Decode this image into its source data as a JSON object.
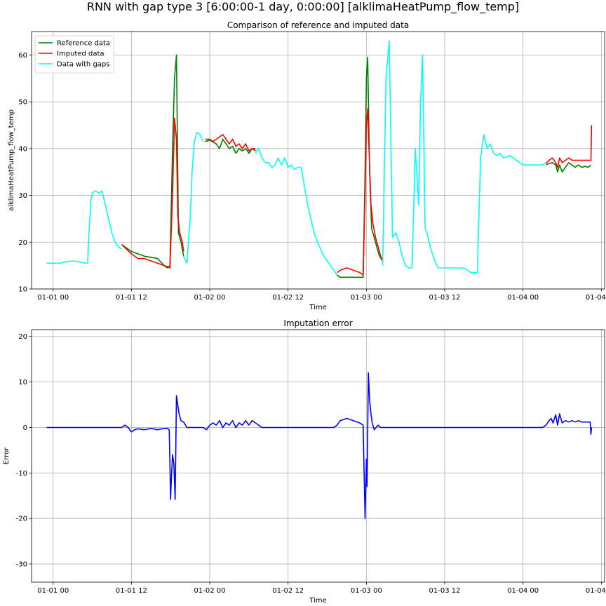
{
  "suptitle": "RNN with gap type 3 [6:00:00-1 day, 0:00:00] [alklimaHeatPump_flow_temp]",
  "chart_data": [
    {
      "type": "line",
      "title": "Comparison of reference and imputed data",
      "xlabel": "Time",
      "ylabel": "alklimaHeatPump_flow_temp",
      "x_unit": "hours since 01-01 00",
      "xlim": [
        -3.3,
        84.5
      ],
      "ylim": [
        10,
        65
      ],
      "xticks": [
        0,
        12,
        24,
        36,
        48,
        60,
        72,
        84
      ],
      "xtick_labels": [
        "01-01 00",
        "01-01 12",
        "01-02 00",
        "01-02 12",
        "01-03 00",
        "01-03 12",
        "01-04 00",
        "01-04 12"
      ],
      "yticks": [
        10,
        20,
        30,
        40,
        50,
        60
      ],
      "grid": true,
      "legend": "top-left",
      "series": [
        {
          "name": "Reference data",
          "color": "#008000",
          "x": [
            10.5,
            11,
            12,
            13,
            14,
            15,
            16,
            17,
            17.5,
            18,
            18.3,
            18.5,
            18.8,
            19.1,
            19.4,
            19.7,
            20,
            20.5,
            21,
            21.5,
            22,
            23,
            23.3,
            24,
            25,
            25.5,
            26,
            26.5,
            27,
            27.5,
            28,
            28.5,
            29,
            29.5,
            30,
            30.5,
            31,
            31.5
          ],
          "y": [
            20,
            19,
            18,
            18,
            17,
            16.5,
            16.5,
            15,
            14.5,
            25,
            45,
            54,
            60,
            22,
            21,
            18,
            16,
            15.5,
            30,
            40,
            43,
            42,
            41.5,
            42,
            41,
            40,
            41,
            40,
            42,
            40,
            39.5,
            40,
            39,
            40,
            39.5,
            40,
            39,
            40
          ],
          "segments": [
            {
              "x": [
                10.5,
                12,
                14,
                16,
                17,
                17.5,
                17.9,
                18.3,
                18.6,
                18.9,
                19.2,
                19.6,
                20
              ],
              "y": [
                19.5,
                18,
                17,
                16.5,
                15,
                14.5,
                15,
                40,
                55,
                60,
                22,
                20,
                17
              ]
            },
            {
              "x": [
                23.3,
                24,
                25,
                25.5,
                26,
                26.5,
                27,
                27.5,
                28,
                28.5,
                29,
                29.5,
                30,
                30.5,
                31
              ],
              "y": [
                41.5,
                41.8,
                41,
                40,
                42,
                41,
                40,
                40.5,
                39,
                40,
                39.5,
                40,
                39,
                40,
                39.5
              ]
            },
            {
              "x": [
                43.5,
                44,
                45,
                46,
                47,
                47.5,
                47.8,
                48,
                48.2,
                48.5,
                48.8,
                49.2,
                49.6,
                50,
                50.5
              ],
              "y": [
                13,
                12.5,
                12.5,
                12.5,
                12.5,
                12.5,
                35,
                55,
                59.5,
                35,
                23,
                21,
                19,
                17,
                16
              ]
            },
            {
              "x": [
                75.5,
                76,
                76.5,
                77,
                77.3,
                77.6,
                78,
                78.5,
                79,
                79.5,
                80,
                80.5,
                81,
                81.5,
                82,
                82.4
              ],
              "y": [
                36.5,
                36.8,
                37,
                36.5,
                35,
                36.5,
                35,
                36,
                37,
                36.5,
                36,
                36.5,
                36,
                36.2,
                36,
                36.5
              ]
            }
          ]
        },
        {
          "name": "Imputed data",
          "color": "#ff0000",
          "segments": [
            {
              "x": [
                10.5,
                12,
                13,
                14,
                15,
                16,
                17,
                17.5,
                17.9,
                18.3,
                18.6,
                18.9,
                19.1,
                19.4,
                19.8,
                20
              ],
              "y": [
                19.5,
                17.5,
                16.5,
                16.5,
                16,
                15.5,
                15,
                14.8,
                14.5,
                30,
                46.5,
                42,
                26,
                22,
                20,
                18
              ]
            },
            {
              "x": [
                23.3,
                24,
                24.5,
                25,
                25.5,
                26,
                26.5,
                27,
                27.5,
                28,
                28.5,
                29,
                29.5,
                30,
                30.5,
                31
              ],
              "y": [
                42,
                42,
                41.5,
                42,
                42.5,
                43,
                42,
                41,
                42,
                40.5,
                41,
                40,
                41,
                39.5,
                40,
                40
              ]
            },
            {
              "x": [
                43.5,
                44,
                45,
                46,
                47,
                47.5,
                47.8,
                48,
                48.2,
                48.4,
                48.7,
                49,
                49.4,
                49.8,
                50.2,
                50.5
              ],
              "y": [
                13.5,
                14,
                14.5,
                14,
                13.5,
                13,
                30,
                45,
                48.5,
                40,
                28,
                24,
                21,
                19,
                17,
                16
              ]
            },
            {
              "x": [
                75.5,
                76,
                76.5,
                77,
                77.3,
                77.6,
                78,
                78.5,
                79,
                79.5,
                80,
                80.5,
                81,
                81.5,
                82,
                82.4,
                82.5
              ],
              "y": [
                36.8,
                37.5,
                38,
                37,
                36,
                38,
                37,
                37.5,
                38,
                37.5,
                37.5,
                37.5,
                37.5,
                37.5,
                37.5,
                37.5,
                45
              ]
            }
          ]
        },
        {
          "name": "Data with gaps",
          "color": "#00ffff",
          "segments": [
            {
              "x": [
                -1,
                0,
                1,
                2,
                3,
                4,
                5,
                5.3,
                5.5,
                5.8,
                6,
                6.5,
                7,
                7.5,
                8,
                8.5,
                9,
                9.5,
                10,
                10.5
              ],
              "y": [
                15.5,
                15.5,
                15.5,
                15.8,
                16,
                15.8,
                15.5,
                15.5,
                22,
                29,
                30.5,
                31,
                30.5,
                31,
                28,
                25,
                22,
                20,
                19,
                18.5
              ]
            },
            {
              "x": [
                20,
                20.5,
                21,
                21.3,
                21.6,
                22,
                22.5,
                23
              ],
              "y": [
                17,
                15.5,
                25,
                35,
                41,
                43.5,
                43,
                41.5
              ]
            },
            {
              "x": [
                31,
                31.5,
                32,
                32.5,
                33,
                33.5,
                34,
                34.5,
                35,
                35.5,
                36,
                36.5,
                37,
                37.5,
                38,
                38.5,
                39,
                39.5,
                40,
                40.5,
                41,
                41.5,
                42,
                42.5,
                43,
                43.5
              ],
              "y": [
                39,
                40,
                38,
                37,
                37,
                36,
                36.5,
                38,
                36.5,
                38,
                36,
                36.5,
                35.5,
                36,
                36,
                32,
                28,
                25,
                22,
                20,
                18.5,
                17,
                16,
                15,
                14,
                13
              ]
            },
            {
              "x": [
                50.5,
                51,
                51.2,
                51.5,
                52,
                52.5,
                53,
                53.5,
                54,
                54.5,
                55,
                55.5,
                56,
                56.3,
                56.6,
                57,
                57.3,
                57.6,
                58,
                58.5,
                59,
                60,
                61,
                62,
                63,
                64,
                65,
                65.5,
                66,
                66.5,
                67,
                67.5,
                68,
                68.5,
                69,
                70,
                71,
                72,
                73,
                74,
                75,
                75.5
              ],
              "y": [
                15,
                55,
                58,
                63,
                21,
                22,
                20,
                17,
                15,
                14.5,
                14.5,
                40,
                28,
                50,
                60,
                23,
                22,
                20,
                18,
                16,
                14.5,
                14.5,
                14.5,
                14.5,
                14.5,
                13.5,
                13.5,
                38,
                43,
                40,
                41,
                39,
                38.5,
                39,
                38,
                38.5,
                37.5,
                36.5,
                36.5,
                36.5,
                36.5,
                37
              ]
            }
          ]
        }
      ]
    },
    {
      "type": "line",
      "title": "Imputation error",
      "xlabel": "Time",
      "ylabel": "Error",
      "x_unit": "hours since 01-01 00",
      "xlim": [
        -3.3,
        84.5
      ],
      "ylim": [
        -34,
        21.5
      ],
      "xticks": [
        0,
        12,
        24,
        36,
        48,
        60,
        72,
        84
      ],
      "xtick_labels": [
        "01-01 00",
        "01-01 12",
        "01-02 00",
        "01-02 12",
        "01-03 00",
        "01-03 12",
        "01-04 00",
        "01-04 12"
      ],
      "yticks": [
        -30,
        -20,
        -10,
        0,
        10,
        20
      ],
      "grid": true,
      "series": [
        {
          "color": "#0000ff",
          "x": [
            -1,
            10.5,
            11,
            11.5,
            12,
            12.5,
            13,
            14,
            15,
            16,
            17,
            17.5,
            17.8,
            18,
            18.1,
            18.3,
            18.5,
            18.7,
            18.9,
            19.1,
            19.3,
            19.6,
            20,
            20.5,
            22,
            23,
            23.5,
            24,
            24.5,
            25,
            25.5,
            26,
            26.5,
            27,
            27.5,
            28,
            28.5,
            29,
            29.5,
            30,
            30.5,
            31,
            32,
            43,
            43.5,
            44,
            45,
            46,
            47,
            47.5,
            47.8,
            48,
            48.1,
            48.3,
            48.5,
            48.7,
            48.9,
            49.2,
            49.5,
            49.8,
            50.2,
            50.5,
            51,
            75,
            75.5,
            76,
            76.3,
            76.6,
            77,
            77.3,
            77.6,
            78,
            78.5,
            79,
            79.5,
            80,
            80.5,
            81,
            81.5,
            82,
            82.3,
            82.4,
            82.5
          ],
          "y": [
            0,
            0,
            0.5,
            0,
            -1,
            -0.5,
            -0.3,
            -0.5,
            -0.2,
            -0.5,
            -0.2,
            -0.2,
            -0.5,
            -15.8,
            -12,
            -6,
            -8,
            -15.8,
            7,
            5,
            3,
            1.5,
            1.2,
            0,
            0,
            0,
            -0.5,
            0.5,
            1,
            0.5,
            1.5,
            0,
            1,
            0.5,
            1.5,
            0,
            1,
            0.5,
            1.5,
            0.5,
            1.5,
            1,
            0,
            0,
            0.5,
            1.5,
            2,
            1.5,
            1,
            0.5,
            -20,
            -7,
            -13,
            12,
            6,
            3,
            1,
            -0.5,
            0,
            0.5,
            0,
            0,
            0,
            0,
            0.5,
            1.5,
            2,
            1,
            2.8,
            0.5,
            3,
            1,
            1.5,
            1.2,
            1.5,
            1.2,
            1.5,
            1.2,
            1.2,
            1.2,
            1.2,
            -1.5,
            0
          ]
        }
      ]
    }
  ]
}
